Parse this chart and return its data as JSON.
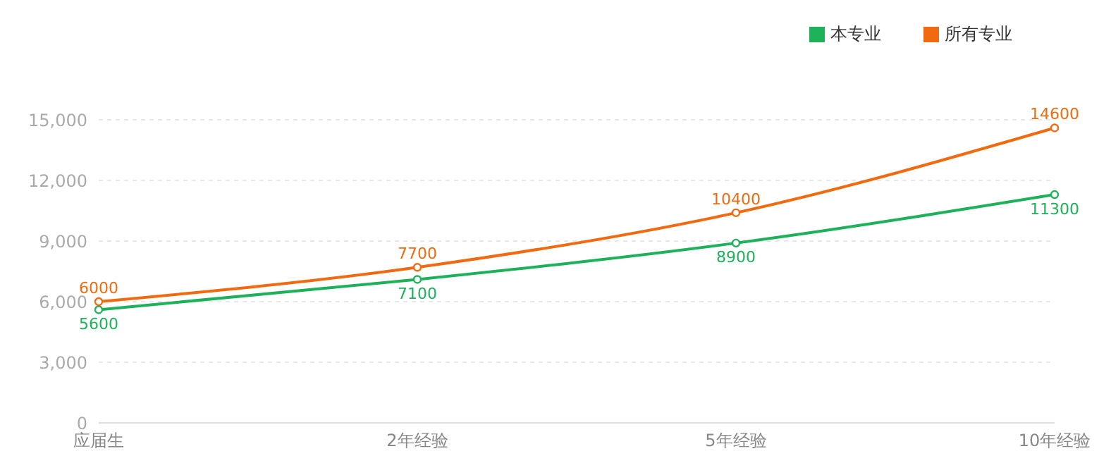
{
  "chart_data": {
    "type": "line",
    "categories": [
      "应届生",
      "2年经验",
      "5年经验",
      "10年经验"
    ],
    "series": [
      {
        "name": "本专业",
        "color": "#1db15a",
        "values": [
          5600,
          7100,
          8900,
          11300
        ]
      },
      {
        "name": "所有专业",
        "color": "#f26a10",
        "values": [
          6000,
          7700,
          10400,
          14600
        ]
      }
    ],
    "ylim": [
      0,
      15000
    ],
    "yticks": [
      0,
      {
        "value": 3000,
        "label": "3,000"
      },
      {
        "value": 6000,
        "label": "6,000"
      },
      {
        "value": 9000,
        "label": "9,000"
      },
      {
        "value": 12000,
        "label": "12,000"
      },
      {
        "value": 15000,
        "label": "15,000"
      }
    ],
    "grid": "y",
    "legend": "top right",
    "marker": "circle",
    "line_style": "solid",
    "data_labels": true
  }
}
